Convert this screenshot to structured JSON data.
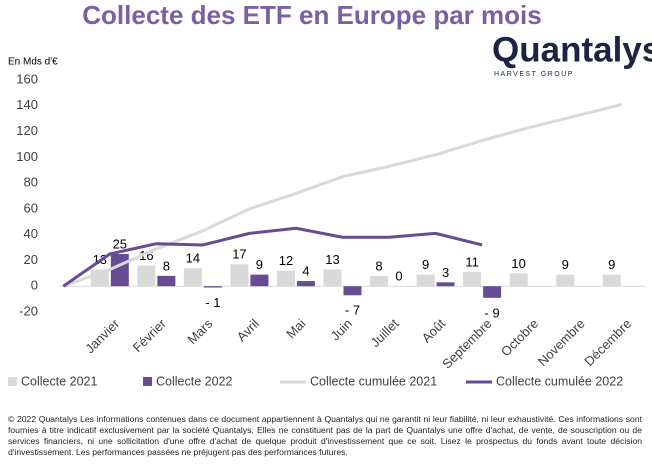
{
  "chart_data": {
    "type": "bar",
    "title": "Collecte des ETF en Europe par mois",
    "y_label": "En Mds d'€",
    "logo": {
      "name": "Quantalys",
      "tagline": "HARVEST GROUP"
    },
    "categories": [
      null,
      "Janvier",
      "Février",
      "Mars",
      "Avril",
      "Mai",
      "Juin",
      "Juillet",
      "Août",
      "Septembre",
      "Octobre",
      "Novembre",
      "Décembre"
    ],
    "series": [
      {
        "name": "Collecte 2021",
        "type": "bar",
        "color": "#d9d9d9",
        "values": [
          null,
          13,
          16,
          14,
          17,
          12,
          13,
          8,
          9,
          11,
          10,
          9,
          9
        ]
      },
      {
        "name": "Collecte 2022",
        "type": "bar",
        "color": "#674b94",
        "values": [
          null,
          25,
          8,
          -1,
          9,
          4,
          -7,
          0,
          3,
          -9,
          null,
          null,
          null
        ],
        "value_labels": [
          null,
          "25",
          "8",
          "- 1",
          "9",
          "4",
          "- 7",
          "0",
          "3",
          "- 9",
          null,
          null,
          null
        ]
      },
      {
        "name": "Collecte cumulée 2021",
        "type": "line",
        "color": "#d9d9d9",
        "values": [
          0,
          13,
          29,
          43,
          60,
          72,
          85,
          93,
          102,
          113,
          123,
          132,
          141
        ]
      },
      {
        "name": "Collecte cumulée 2022",
        "type": "line",
        "color": "#674b94",
        "values": [
          0,
          25,
          33,
          32,
          41,
          45,
          38,
          38,
          41,
          32,
          null,
          null,
          null
        ]
      }
    ],
    "ylim": [
      -20,
      160
    ],
    "yticks": [
      -20,
      0,
      20,
      40,
      60,
      80,
      100,
      120,
      140,
      160
    ],
    "grid": false,
    "legend": "bottom",
    "footer": "© 2022 Quantalys Les informations contenues dans ce document appartiennent à Quantalys qui ne garantit ni leur fiabilité, ni leur exhaustivité. Ces informations sont fournies à titre indicatif exclusivement par la société Quantalys. Elles ne constituent pas de la part de Quantalys une offre d'achat, de vente, de souscription ou de services financiers, ni une sollicitation d'une offre d'achat de quelque produit d'investissement que ce soit. Lisez le prospectus du fonds avant toute décision d'investissement. Les performances passées ne préjugent pas des performances futures."
  }
}
